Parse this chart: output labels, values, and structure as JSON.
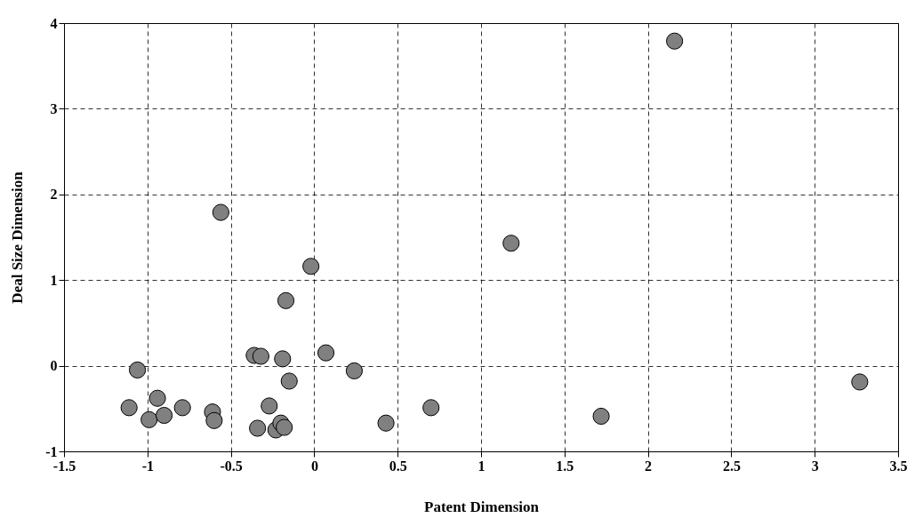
{
  "chart_data": {
    "type": "scatter",
    "xlabel": "Patent Dimension",
    "ylabel": "Deal Size Dimension",
    "x": [
      -1.06,
      -1.11,
      -0.94,
      -0.99,
      -0.9,
      -0.79,
      -0.61,
      -0.6,
      -0.56,
      -0.36,
      -0.32,
      -0.19,
      -0.15,
      0.07,
      0.24,
      -0.27,
      -0.34,
      -0.23,
      -0.2,
      -0.18,
      -0.02,
      -0.17,
      0.43,
      0.7,
      1.18,
      1.72,
      2.16,
      3.27
    ],
    "values": [
      -0.05,
      -0.49,
      -0.38,
      -0.63,
      -0.58,
      -0.49,
      -0.54,
      -0.64,
      1.79,
      0.12,
      0.11,
      0.08,
      -0.18,
      0.15,
      -0.06,
      -0.47,
      -0.73,
      -0.75,
      -0.67,
      -0.72,
      1.16,
      0.76,
      -0.67,
      -0.49,
      1.43,
      -0.59,
      3.79,
      -0.19
    ],
    "color": "#808080",
    "marker": "circle",
    "grid": true,
    "xlim": [
      -1.5,
      3.5
    ],
    "xticks": [
      -1.5,
      -1,
      -0.5,
      0,
      0.5,
      1,
      1.5,
      2,
      2.5,
      3,
      3.5
    ],
    "ylim": [
      -1,
      4
    ],
    "yticks": [
      -1,
      0,
      1,
      2,
      3,
      4
    ]
  }
}
